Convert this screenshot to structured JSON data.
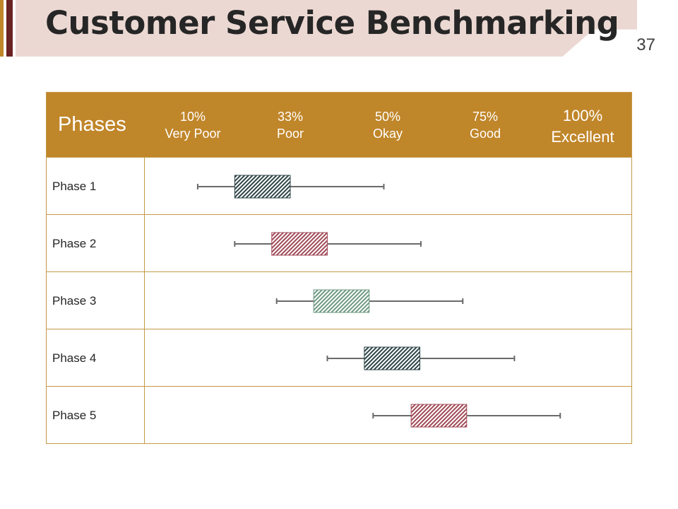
{
  "slide": {
    "title": "Customer Service Benchmarking",
    "page_number": "37"
  },
  "table": {
    "header_label": "Phases",
    "scale": [
      {
        "percent": "10%",
        "label": "Very Poor"
      },
      {
        "percent": "33%",
        "label": "Poor"
      },
      {
        "percent": "50%",
        "label": "Okay"
      },
      {
        "percent": "75%",
        "label": "Good"
      },
      {
        "percent": "100%",
        "label": "Excellent"
      }
    ],
    "rows": [
      {
        "label": "Phase 1"
      },
      {
        "label": "Phase 2"
      },
      {
        "label": "Phase 3"
      },
      {
        "label": "Phase 4"
      },
      {
        "label": "Phase 5"
      }
    ]
  },
  "chart_data": {
    "type": "boxplot",
    "scale_positions": [
      1,
      2,
      3,
      4,
      5
    ],
    "scale_labels": [
      "Very Poor",
      "Poor",
      "Okay",
      "Good",
      "Excellent"
    ],
    "series": [
      {
        "name": "Phase 1",
        "min": 1.05,
        "box_low": 1.43,
        "box_high": 2.0,
        "max": 2.96,
        "color": "#2f4548"
      },
      {
        "name": "Phase 2",
        "min": 1.43,
        "box_low": 1.81,
        "box_high": 2.38,
        "max": 3.34,
        "color": "#a04a55"
      },
      {
        "name": "Phase 3",
        "min": 1.86,
        "box_low": 2.24,
        "box_high": 2.81,
        "max": 3.77,
        "color": "#6f9a82"
      },
      {
        "name": "Phase 4",
        "min": 2.38,
        "box_low": 2.76,
        "box_high": 3.33,
        "max": 4.3,
        "color": "#2f4548"
      },
      {
        "name": "Phase 5",
        "min": 2.85,
        "box_low": 3.24,
        "box_high": 3.81,
        "max": 4.77,
        "color": "#a04a55"
      }
    ]
  }
}
